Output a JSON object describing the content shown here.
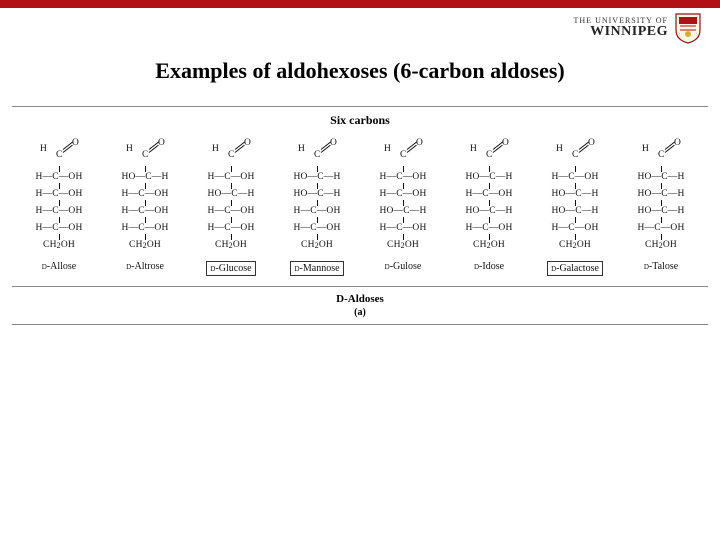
{
  "header": {
    "bar_color": "#b11116",
    "logo_top": "THE UNIVERSITY OF",
    "logo_bottom": "WINNIPEG"
  },
  "title": "Examples of aldohexoses (6-carbon aldoses)",
  "figure": {
    "subtitle": "Six carbons",
    "aldehyde": {
      "H": "H",
      "C": "C",
      "O": "O"
    },
    "tail": "CH₂OH",
    "molecules": [
      {
        "name": "D-Allose",
        "boxed": false,
        "rows": [
          "H—C—OH",
          "H—C—OH",
          "H—C—OH",
          "H—C—OH"
        ]
      },
      {
        "name": "D-Altrose",
        "boxed": false,
        "rows": [
          "HO—C—H",
          "H—C—OH",
          "H—C—OH",
          "H—C—OH"
        ]
      },
      {
        "name": "D-Glucose",
        "boxed": true,
        "rows": [
          "H—C—OH",
          "HO—C—H",
          "H—C—OH",
          "H—C—OH"
        ]
      },
      {
        "name": "D-Mannose",
        "boxed": true,
        "rows": [
          "HO—C—H",
          "HO—C—H",
          "H—C—OH",
          "H—C—OH"
        ]
      },
      {
        "name": "D-Gulose",
        "boxed": false,
        "rows": [
          "H—C—OH",
          "H—C—OH",
          "HO—C—H",
          "H—C—OH"
        ]
      },
      {
        "name": "D-Idose",
        "boxed": false,
        "rows": [
          "HO—C—H",
          "H—C—OH",
          "HO—C—H",
          "H—C—OH"
        ]
      },
      {
        "name": "D-Galactose",
        "boxed": true,
        "rows": [
          "H—C—OH",
          "HO—C—H",
          "HO—C—H",
          "H—C—OH"
        ]
      },
      {
        "name": "D-Talose",
        "boxed": false,
        "rows": [
          "HO—C—H",
          "HO—C—H",
          "HO—C—H",
          "H—C—OH"
        ]
      }
    ],
    "caption1": "D-Aldoses",
    "caption2": "(a)"
  },
  "colors": {
    "text": "#000000",
    "border": "#888888",
    "background": "#ffffff"
  }
}
